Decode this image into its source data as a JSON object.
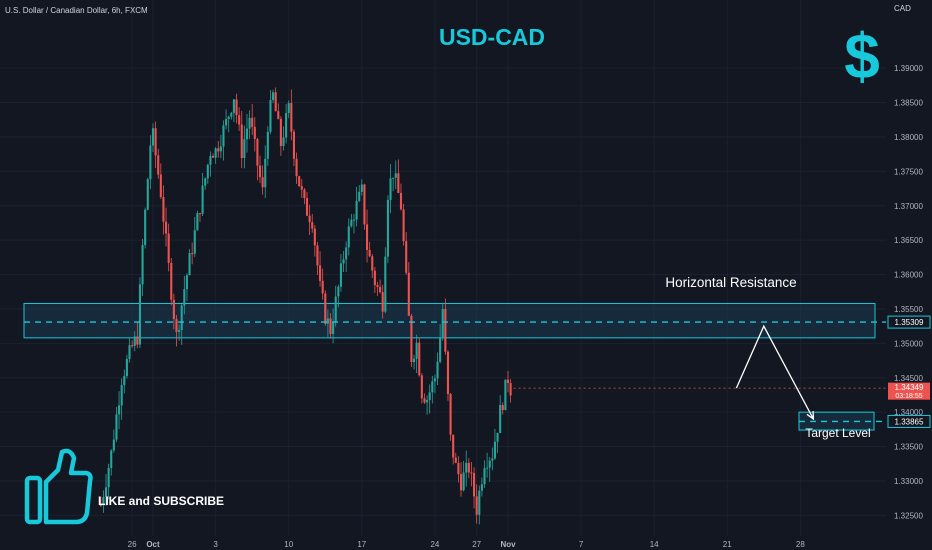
{
  "header": {
    "symbol_line": "U.S. Dollar / Canadian Dollar, 6h, FXCM",
    "currency": "CAD",
    "title": "USD-CAD"
  },
  "annotations": {
    "resistance_label": "Horizontal Resistance",
    "target_label": "Target Level",
    "cta_label": "LIKE and SUBSCRIBE"
  },
  "colors": {
    "background": "#131722",
    "bull": "#26a69a",
    "bear": "#ef5350",
    "accent": "#17c9db",
    "zone_fill": "#1a3b52"
  },
  "icons": {
    "logo": "dollar-icon",
    "like": "thumbs-up-icon"
  },
  "chart_data": {
    "type": "candlestick",
    "title": "USD-CAD",
    "ylabel": "CAD",
    "ylim": [
      1.322,
      1.397
    ],
    "y_ticks": [
      "1.39000",
      "1.38500",
      "1.38000",
      "1.37500",
      "1.37000",
      "1.36500",
      "1.36000",
      "1.35500",
      "1.35000",
      "1.34500",
      "1.34000",
      "1.33500",
      "1.33000",
      "1.32500"
    ],
    "x_ticks": [
      "26",
      "Oct",
      "3",
      "10",
      "17",
      "24",
      "27",
      "Nov",
      "7",
      "14",
      "21",
      "28"
    ],
    "x_tick_values": [
      -8,
      0,
      24,
      52,
      80,
      108,
      124,
      136,
      164,
      192,
      220,
      248
    ],
    "last_price": "1.34349",
    "countdown": "03:18:55",
    "last_price_value": 1.34349,
    "resistance_level": "1.35309",
    "resistance_level_value": 1.35309,
    "resistance_zone": [
      1.3508,
      1.3558
    ],
    "target_level": "1.33865",
    "target_level_value": 1.33865,
    "target_zone": [
      1.3374,
      1.34
    ],
    "projection": [
      [
        223.5,
        1.3435
      ],
      [
        234,
        1.3525
      ],
      [
        253,
        1.339
      ]
    ],
    "anchors": [
      [
        -20,
        1.3265
      ],
      [
        -16,
        1.334
      ],
      [
        -12,
        1.345
      ],
      [
        -8,
        1.3495
      ],
      [
        -6,
        1.351
      ],
      [
        -4,
        1.364
      ],
      [
        -1,
        1.379
      ],
      [
        0,
        1.38
      ],
      [
        3,
        1.372
      ],
      [
        6,
        1.361
      ],
      [
        9,
        1.351
      ],
      [
        12,
        1.358
      ],
      [
        15,
        1.364
      ],
      [
        19,
        1.372
      ],
      [
        22,
        1.378
      ],
      [
        24,
        1.378
      ],
      [
        28,
        1.382
      ],
      [
        31,
        1.386
      ],
      [
        34,
        1.378
      ],
      [
        37,
        1.383
      ],
      [
        40,
        1.376
      ],
      [
        42,
        1.372
      ],
      [
        44,
        1.382
      ],
      [
        46,
        1.386
      ],
      [
        49,
        1.379
      ],
      [
        52,
        1.384
      ],
      [
        55,
        1.375
      ],
      [
        58,
        1.37
      ],
      [
        61,
        1.368
      ],
      [
        64,
        1.358
      ],
      [
        66,
        1.354
      ],
      [
        68,
        1.352
      ],
      [
        71,
        1.358
      ],
      [
        74,
        1.365
      ],
      [
        77,
        1.369
      ],
      [
        80,
        1.372
      ],
      [
        82,
        1.364
      ],
      [
        85,
        1.359
      ],
      [
        88,
        1.356
      ],
      [
        90,
        1.372
      ],
      [
        92,
        1.375
      ],
      [
        95,
        1.37
      ],
      [
        97,
        1.359
      ],
      [
        99,
        1.348
      ],
      [
        101,
        1.35
      ],
      [
        103,
        1.343
      ],
      [
        105,
        1.342
      ],
      [
        108,
        1.345
      ],
      [
        110,
        1.351
      ],
      [
        111,
        1.355
      ],
      [
        112,
        1.348
      ],
      [
        114,
        1.336
      ],
      [
        116,
        1.332
      ],
      [
        118,
        1.33
      ],
      [
        121,
        1.332
      ],
      [
        124,
        1.326
      ],
      [
        127,
        1.333
      ],
      [
        130,
        1.334
      ],
      [
        133,
        1.34
      ],
      [
        136,
        1.345
      ],
      [
        137,
        1.3435
      ]
    ]
  }
}
